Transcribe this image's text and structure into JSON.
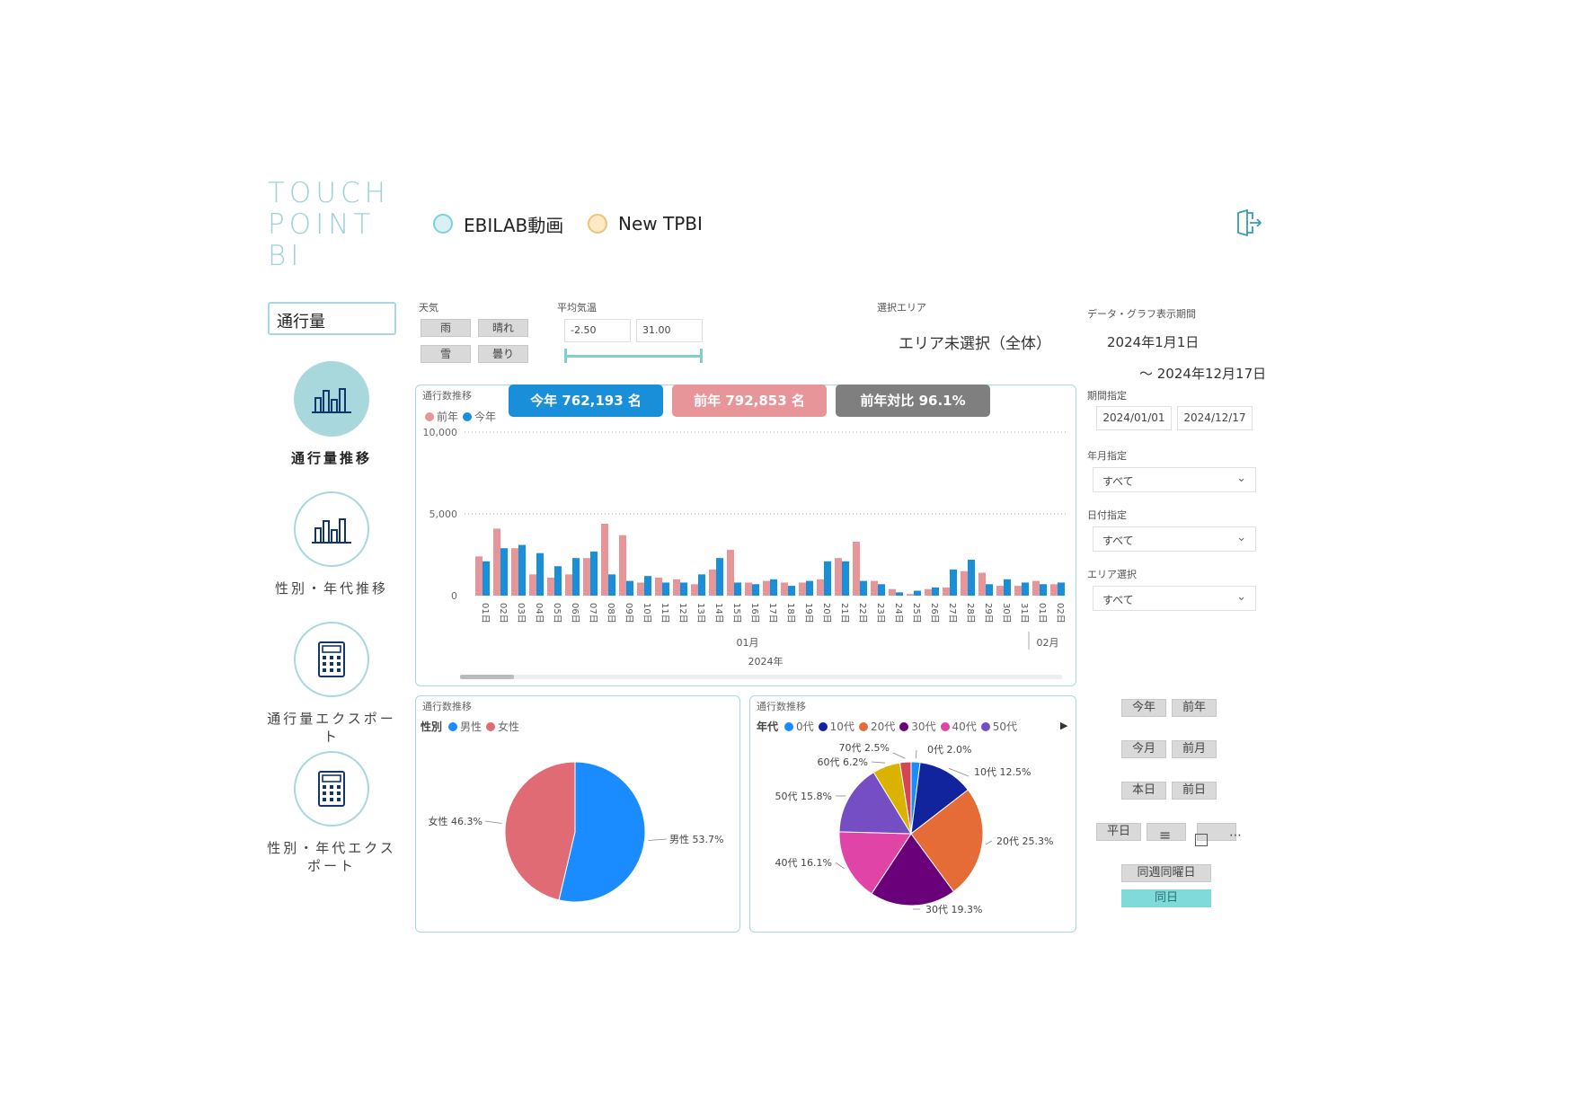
{
  "logo": {
    "lines": [
      "TOUCH",
      "POINT",
      "BI"
    ]
  },
  "header": {
    "links": [
      {
        "label": "EBILAB動画",
        "icon": "video-icon"
      },
      {
        "label": "New TPBI",
        "icon": "tpbi-icon"
      }
    ],
    "exit_icon": "exit-icon"
  },
  "sidebar": {
    "metric": "通行量",
    "items": [
      {
        "label": "通行量推移",
        "icon": "bar-chart-icon",
        "active": true
      },
      {
        "label": "性別・年代推移",
        "icon": "bar-chart-icon",
        "active": false
      },
      {
        "label": "通行量エクスポート",
        "icon": "calculator-icon",
        "active": false
      },
      {
        "label": "性別・年代エクスポート",
        "icon": "calculator-icon",
        "active": false
      }
    ]
  },
  "filters": {
    "weather_label": "天気",
    "weather_buttons": [
      "雨",
      "晴れ",
      "雪",
      "曇り"
    ],
    "temp_label": "平均気温",
    "temp_min": "-2.50",
    "temp_max": "31.00",
    "area_label": "選択エリア",
    "area_value": "エリア未選択（全体）",
    "period_label": "データ・グラフ表示期間",
    "period_start": "2024年1月1日",
    "period_end": "～ 2024年12月17日",
    "range_label": "期間指定",
    "range_start": "2024/01/01",
    "range_end": "2024/12/17",
    "year_month_label": "年月指定",
    "year_month_value": "すべて",
    "day_label": "日付指定",
    "day_value": "すべて",
    "area_select_label": "エリア選択",
    "area_select_value": "すべて"
  },
  "cards": {
    "this_year": "今年 762,193 名",
    "last_year": "前年 792,853 名",
    "yoy": "前年対比 96.1%",
    "colors": {
      "this_year": "#1a8fd9",
      "last_year": "#e8959a",
      "yoy": "#7f7f7f"
    }
  },
  "main_chart": {
    "title": "通行数推移",
    "legend": [
      "前年",
      "今年"
    ]
  },
  "gender_chart": {
    "title": "通行数推移",
    "legend_title": "性別",
    "legend": [
      "男性",
      "女性"
    ]
  },
  "age_chart": {
    "title": "通行数推移",
    "legend_title": "年代",
    "legend": [
      "0代",
      "10代",
      "20代",
      "30代",
      "40代",
      "50代"
    ]
  },
  "chart_data": [
    {
      "type": "bar",
      "categories": [
        "01日",
        "02日",
        "03日",
        "04日",
        "05日",
        "06日",
        "07日",
        "08日",
        "09日",
        "10日",
        "11日",
        "12日",
        "13日",
        "14日",
        "15日",
        "16日",
        "17日",
        "18日",
        "19日",
        "20日",
        "21日",
        "22日",
        "23日",
        "24日",
        "25日",
        "26日",
        "27日",
        "28日",
        "29日",
        "30日",
        "31日",
        "01日",
        "02日"
      ],
      "series": [
        {
          "name": "前年",
          "color": "#e8959a",
          "values": [
            2400,
            4100,
            2900,
            1300,
            1100,
            1300,
            2300,
            4400,
            3700,
            800,
            1100,
            1000,
            700,
            1600,
            2800,
            800,
            900,
            800,
            800,
            1000,
            2300,
            3300,
            900,
            400,
            100,
            400,
            500,
            1500,
            1400,
            600,
            600,
            900,
            700
          ]
        },
        {
          "name": "今年",
          "color": "#1a8fd9",
          "values": [
            2100,
            2900,
            3100,
            2600,
            1800,
            2300,
            2700,
            1300,
            900,
            1200,
            800,
            800,
            1300,
            2300,
            800,
            700,
            1000,
            600,
            900,
            2100,
            2100,
            900,
            700,
            200,
            300,
            500,
            1600,
            2200,
            700,
            1000,
            800,
            700,
            800
          ]
        }
      ],
      "ylim": [
        0,
        10000
      ],
      "yticks": [
        "0",
        "5,000",
        "10,000"
      ],
      "month_labels": [
        "01月",
        "02月"
      ],
      "year_label": "2024年"
    },
    {
      "type": "pie",
      "categories": [
        "男性",
        "女性"
      ],
      "values": [
        53.7,
        46.3
      ],
      "colors": [
        "#1a8cff",
        "#e06b75"
      ],
      "labels": [
        "男性 53.7%",
        "女性 46.3%"
      ]
    },
    {
      "type": "pie",
      "categories": [
        "0代",
        "10代",
        "20代",
        "30代",
        "40代",
        "50代",
        "60代",
        "70代"
      ],
      "values": [
        2.0,
        12.5,
        25.3,
        19.3,
        16.1,
        15.8,
        6.2,
        2.5
      ],
      "colors": [
        "#1a8cff",
        "#12239e",
        "#e66c37",
        "#6b007b",
        "#e044a7",
        "#744ec2",
        "#d9b300",
        "#d64550"
      ],
      "labels": [
        "0代 2.0%",
        "10代 12.5%",
        "20代 25.3%",
        "30代 19.3%",
        "40代 16.1%",
        "50代 15.8%",
        "60代 6.2%",
        "70代 2.5%"
      ]
    }
  ],
  "quick_buttons": {
    "row1": [
      "今年",
      "前年"
    ],
    "row2": [
      "今月",
      "前月"
    ],
    "row3": [
      "本日",
      "前日"
    ],
    "row4": [
      "平日"
    ],
    "wide1": "同週同曜日",
    "wide2": "同日",
    "accent": "#7fdad9"
  }
}
